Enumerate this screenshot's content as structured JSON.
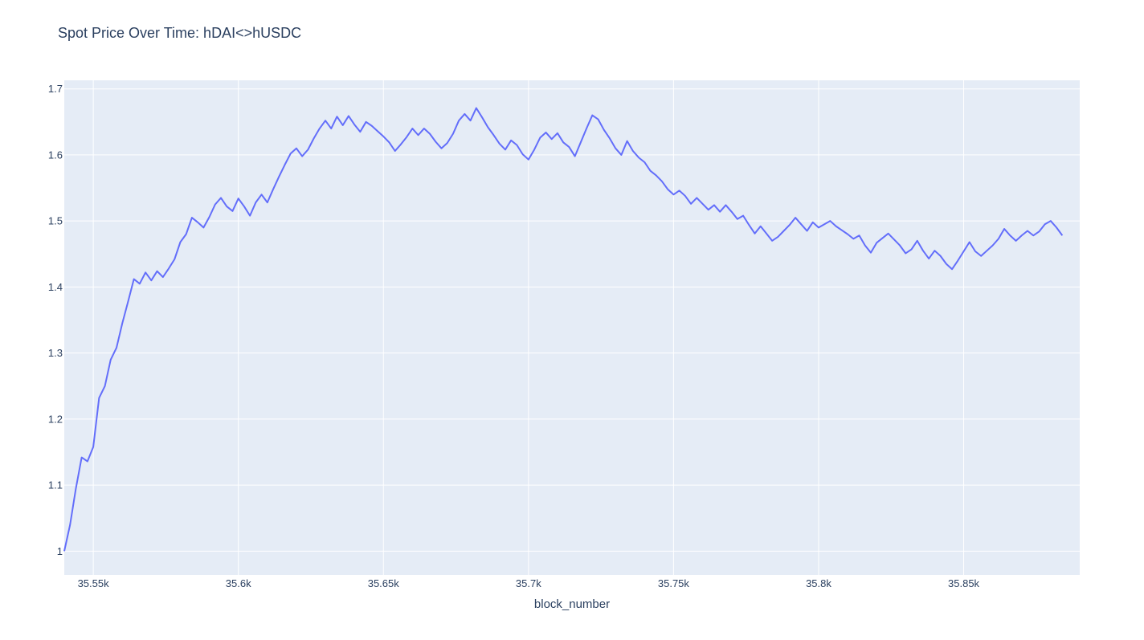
{
  "chart_data": {
    "type": "line",
    "title": "Spot Price Over Time: hDAI<>hUSDC",
    "xlabel": "block_number",
    "ylabel": "",
    "xlim": [
      35540,
      35890
    ],
    "ylim": [
      0.964,
      1.713
    ],
    "grid": true,
    "x_ticks": [
      35550,
      35600,
      35650,
      35700,
      35750,
      35800,
      35850
    ],
    "x_tick_labels": [
      "35.55k",
      "35.6k",
      "35.65k",
      "35.7k",
      "35.75k",
      "35.8k",
      "35.85k"
    ],
    "y_ticks": [
      1.0,
      1.1,
      1.2,
      1.3,
      1.4,
      1.5,
      1.6,
      1.7
    ],
    "y_tick_labels": [
      "1",
      "1.1",
      "1.2",
      "1.3",
      "1.4",
      "1.5",
      "1.6",
      "1.7"
    ],
    "colors": {
      "line": "#636efa",
      "plot_bg": "#e5ecf6",
      "grid": "#ffffff"
    },
    "series": [
      {
        "x_start": 35540,
        "x_step": 2,
        "values": [
          1.0,
          1.04,
          1.095,
          1.142,
          1.136,
          1.158,
          1.232,
          1.25,
          1.29,
          1.308,
          1.345,
          1.378,
          1.412,
          1.405,
          1.422,
          1.41,
          1.424,
          1.415,
          1.428,
          1.442,
          1.468,
          1.48,
          1.505,
          1.498,
          1.49,
          1.506,
          1.525,
          1.535,
          1.522,
          1.515,
          1.534,
          1.522,
          1.508,
          1.528,
          1.54,
          1.528,
          1.548,
          1.567,
          1.585,
          1.602,
          1.61,
          1.598,
          1.608,
          1.625,
          1.64,
          1.652,
          1.64,
          1.658,
          1.645,
          1.659,
          1.646,
          1.635,
          1.65,
          1.644,
          1.636,
          1.628,
          1.619,
          1.606,
          1.616,
          1.627,
          1.64,
          1.63,
          1.64,
          1.632,
          1.62,
          1.61,
          1.618,
          1.632,
          1.652,
          1.662,
          1.652,
          1.671,
          1.657,
          1.642,
          1.63,
          1.617,
          1.608,
          1.622,
          1.615,
          1.601,
          1.593,
          1.608,
          1.626,
          1.634,
          1.624,
          1.633,
          1.619,
          1.612,
          1.598,
          1.619,
          1.64,
          1.66,
          1.654,
          1.638,
          1.625,
          1.61,
          1.6,
          1.621,
          1.606,
          1.596,
          1.589,
          1.576,
          1.569,
          1.56,
          1.548,
          1.54,
          1.546,
          1.538,
          1.526,
          1.535,
          1.526,
          1.517,
          1.524,
          1.514,
          1.524,
          1.514,
          1.503,
          1.508,
          1.494,
          1.481,
          1.492,
          1.481,
          1.47,
          1.476,
          1.485,
          1.494,
          1.505,
          1.495,
          1.485,
          1.498,
          1.49,
          1.495,
          1.5,
          1.492,
          1.486,
          1.48,
          1.473,
          1.478,
          1.463,
          1.452,
          1.467,
          1.474,
          1.481,
          1.472,
          1.463,
          1.451,
          1.457,
          1.47,
          1.455,
          1.443,
          1.455,
          1.447,
          1.435,
          1.427,
          1.44,
          1.454,
          1.468,
          1.454,
          1.447,
          1.455,
          1.463,
          1.473,
          1.488,
          1.478,
          1.47,
          1.478,
          1.485,
          1.478,
          1.484,
          1.495,
          1.5,
          1.49,
          1.478
        ]
      }
    ]
  }
}
